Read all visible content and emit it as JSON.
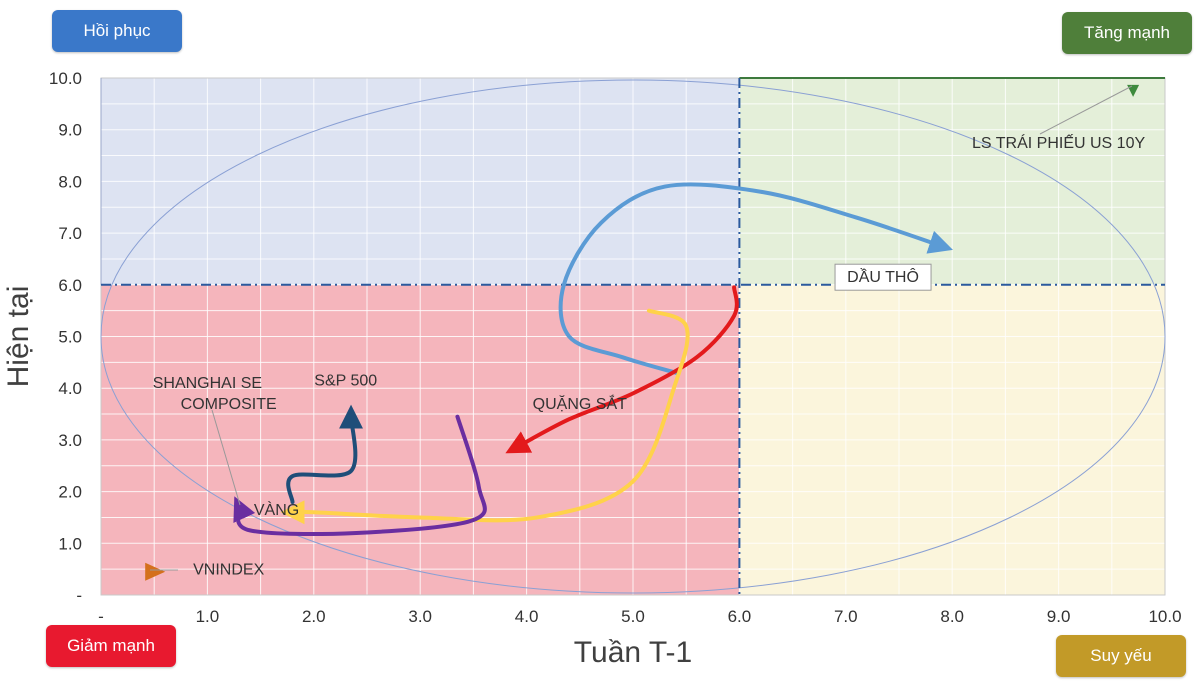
{
  "quadrants": {
    "top_left": {
      "label": "Hồi phục",
      "color": "#3a78c9",
      "fill": "#dde3f2"
    },
    "top_right": {
      "label": "Tăng mạnh",
      "color": "#4f7f3a",
      "fill": "#e4efd9"
    },
    "bottom_left": {
      "label": "Giảm mạnh",
      "color": "#e8192f",
      "fill": "#f5b5bc"
    },
    "bottom_right": {
      "label": "Suy yếu",
      "color": "#c29a28",
      "fill": "#fbf5dc"
    }
  },
  "chart_data": {
    "type": "line",
    "title": "",
    "xlabel": "Tuần T-1",
    "ylabel": "Hiện tại",
    "xlim": [
      0,
      10
    ],
    "ylim": [
      0,
      10
    ],
    "x_ticks": [
      "-",
      "1.0",
      "2.0",
      "3.0",
      "4.0",
      "5.0",
      "6.0",
      "7.0",
      "8.0",
      "9.0",
      "10.0"
    ],
    "y_ticks": [
      "-",
      "1.0",
      "2.0",
      "3.0",
      "4.0",
      "5.0",
      "6.0",
      "7.0",
      "8.0",
      "9.0",
      "10.0"
    ],
    "grid": true,
    "quadrant_split": {
      "x": 6.0,
      "y": 6.0
    },
    "series": [
      {
        "name": "DẦU THÔ",
        "color": "#5b9bd5",
        "points": [
          [
            5.4,
            4.3
          ],
          [
            4.9,
            4.6
          ],
          [
            4.4,
            5.0
          ],
          [
            4.35,
            6.0
          ],
          [
            4.7,
            7.2
          ],
          [
            5.3,
            7.9
          ],
          [
            6.2,
            7.8
          ],
          [
            7.1,
            7.3
          ],
          [
            7.9,
            6.75
          ]
        ]
      },
      {
        "name": "QUẶNG SẮT",
        "color": "#e31a1c",
        "points": [
          [
            5.95,
            5.95
          ],
          [
            5.95,
            5.4
          ],
          [
            5.6,
            4.6
          ],
          [
            5.0,
            3.9
          ],
          [
            4.4,
            3.4
          ],
          [
            3.9,
            2.85
          ]
        ]
      },
      {
        "name": "VÀNG",
        "color": "#ffd24a",
        "points": [
          [
            5.15,
            5.5
          ],
          [
            5.5,
            5.2
          ],
          [
            5.4,
            4.1
          ],
          [
            5.0,
            2.2
          ],
          [
            4.1,
            1.5
          ],
          [
            3.0,
            1.5
          ],
          [
            2.0,
            1.6
          ],
          [
            1.8,
            1.6
          ]
        ]
      },
      {
        "name": "SHANGHAI SE COMPOSITE",
        "color": "#6a2ea0",
        "points": [
          [
            3.35,
            3.45
          ],
          [
            3.55,
            2.1
          ],
          [
            3.5,
            1.45
          ],
          [
            2.4,
            1.2
          ],
          [
            1.4,
            1.25
          ],
          [
            1.3,
            1.7
          ]
        ]
      },
      {
        "name": "S&P 500",
        "color": "#1f4e79",
        "points": [
          [
            1.8,
            1.8
          ],
          [
            1.8,
            2.3
          ],
          [
            2.35,
            2.4
          ],
          [
            2.35,
            3.45
          ]
        ]
      },
      {
        "name": "VNINDEX",
        "color": "#d4701c",
        "marker": "triangle",
        "points": [
          [
            0.5,
            0.45
          ]
        ]
      },
      {
        "name": "LS TRÁI PHIẾU US 10Y",
        "color": "#3d8a3d",
        "marker": "triangle-down",
        "points": [
          [
            9.7,
            9.75
          ]
        ]
      }
    ],
    "annotations": [
      {
        "text": "DẦU THÔ",
        "x": 7.35,
        "y": 6.05,
        "boxed": true
      },
      {
        "text": "QUẶNG SẮT",
        "x": 4.5,
        "y": 3.6
      },
      {
        "text": "VÀNG",
        "x": 1.65,
        "y": 1.55
      },
      {
        "text": "SHANGHAI SE",
        "x": 1.0,
        "y": 4.0
      },
      {
        "text": "COMPOSITE",
        "x": 1.2,
        "y": 3.6
      },
      {
        "text": "S&P 500",
        "x": 2.3,
        "y": 4.05
      },
      {
        "text": "VNINDEX",
        "x": 1.2,
        "y": 0.4
      },
      {
        "text": "LS TRÁI PHIẾU US 10Y",
        "x": 9.0,
        "y": 8.65
      }
    ]
  }
}
